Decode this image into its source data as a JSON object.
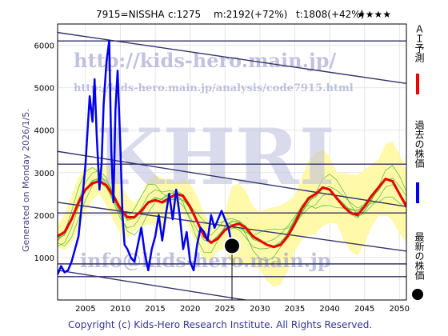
{
  "header": {
    "code_name": "7915=NISSHA",
    "current": "c:1275",
    "max_info": "m:2192(+72%)",
    "target_info": "t:1808(+42%)",
    "rating": "★★★★"
  },
  "side_label": "Generated on Monday 2026/1/5.",
  "footer": "Copyright (c) Kids-Hero Research Institute. All Rights Reserved.",
  "watermarks": {
    "big": "KHRI",
    "url": "http://kids-hero.main.jp/",
    "analysis_url": "http://kids-hero.main.jp/analysis/code7915.html",
    "email": "info@kids-hero.main.jp"
  },
  "legend": [
    {
      "label": "ＡＩ予測",
      "color": "#ee0000",
      "kind": "line"
    },
    {
      "label": "過去の株価",
      "color": "#0000ee",
      "kind": "line"
    },
    {
      "label": "最新の株価",
      "color": "#000000",
      "kind": "dot"
    }
  ],
  "colors": {
    "ai_prediction": "#ee0000",
    "past_price": "#0000ee",
    "band_fill": "#fff8a0",
    "band_green": "#44bb33",
    "trend_lines": "#333366"
  },
  "chart_data": {
    "type": "line",
    "xlim": [
      2001,
      2051
    ],
    "ylim": [
      0,
      6500
    ],
    "x_ticks": [
      2005,
      2010,
      2015,
      2020,
      2025,
      2030,
      2035,
      2040,
      2045,
      2050
    ],
    "y_ticks": [
      1000,
      2000,
      3000,
      4000,
      5000,
      6000
    ],
    "grid": true,
    "series": [
      {
        "name": "過去の株価",
        "x": [
          2001,
          2001.5,
          2002,
          2002.5,
          2003,
          2003.5,
          2004,
          2004.5,
          2005,
          2005.3,
          2005.6,
          2006,
          2006.3,
          2006.6,
          2007,
          2007.3,
          2007.6,
          2008,
          2008.4,
          2008.7,
          2009,
          2009.3,
          2009.6,
          2010,
          2010.3,
          2010.6,
          2011,
          2011.5,
          2012,
          2012.5,
          2013,
          2013.5,
          2014,
          2014.5,
          2015,
          2015.5,
          2016,
          2016.5,
          2017,
          2017.5,
          2018,
          2018.5,
          2019,
          2019.5,
          2020,
          2020.5,
          2021,
          2021.5,
          2022,
          2022.5,
          2023,
          2023.5,
          2024,
          2024.5,
          2025,
          2025.5,
          2026
        ],
        "y": [
          600,
          800,
          650,
          700,
          900,
          1200,
          1500,
          2300,
          3200,
          4000,
          4800,
          4200,
          5200,
          3900,
          2600,
          3200,
          4600,
          5600,
          6100,
          3500,
          2300,
          4500,
          5400,
          3600,
          2000,
          1300,
          1200,
          1000,
          900,
          1300,
          1700,
          1100,
          700,
          1200,
          1500,
          2000,
          1400,
          2000,
          2500,
          1900,
          2600,
          2000,
          1200,
          1600,
          900,
          700,
          1300,
          1700,
          1600,
          1400,
          2000,
          1700,
          1900,
          2100,
          1900,
          1700,
          1275
        ]
      },
      {
        "name": "ＡＩ予測",
        "x": [
          2001,
          2002,
          2003,
          2004,
          2005,
          2006,
          2007,
          2008,
          2009,
          2010,
          2011,
          2012,
          2013,
          2014,
          2015,
          2016,
          2017,
          2018,
          2019,
          2020,
          2021,
          2022,
          2023,
          2024,
          2025,
          2026,
          2027,
          2028,
          2029,
          2030,
          2031,
          2032,
          2033,
          2034,
          2035,
          2036,
          2037,
          2038,
          2039,
          2040,
          2041,
          2042,
          2043,
          2044,
          2045,
          2046,
          2047,
          2048,
          2049,
          2050,
          2051
        ],
        "y": [
          1500,
          1600,
          1900,
          2300,
          2600,
          2750,
          2800,
          2700,
          2450,
          2150,
          1950,
          1950,
          2100,
          2300,
          2350,
          2300,
          2400,
          2500,
          2450,
          2200,
          1850,
          1500,
          1350,
          1450,
          1650,
          1750,
          1800,
          1700,
          1500,
          1400,
          1300,
          1250,
          1300,
          1500,
          1800,
          2150,
          2400,
          2500,
          2650,
          2600,
          2400,
          2200,
          2050,
          2000,
          2200,
          2450,
          2650,
          2850,
          2800,
          2500,
          2200
        ]
      }
    ],
    "latest_point": {
      "x": 2026,
      "y": 1275
    }
  }
}
